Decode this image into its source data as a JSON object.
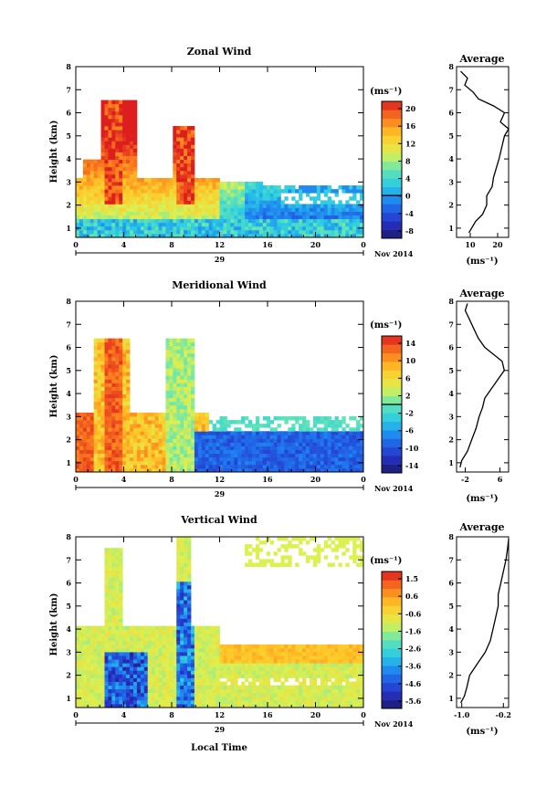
{
  "footer_label": "Local Time",
  "chart_data": [
    {
      "type": "heatmap",
      "title": "Zonal Wind",
      "xlabel": "",
      "ylabel": "Height (km)",
      "date_label": "29",
      "month_label": "Nov 2014",
      "x_ticks": [
        "0",
        "4",
        "8",
        "12",
        "16",
        "20",
        "0"
      ],
      "y_ticks": [
        "1",
        "2",
        "3",
        "4",
        "5",
        "6",
        "7",
        "8"
      ],
      "xlim": [
        0,
        24
      ],
      "ylim": [
        0.6,
        8.0
      ],
      "colorbar": {
        "unit": "(ms⁻¹)",
        "ticks": [
          "20",
          "16",
          "12",
          "8",
          "4",
          "0",
          "-4",
          "-8"
        ],
        "range": [
          -10,
          22
        ],
        "zero_line": 0
      },
      "profile": {
        "title": "Average",
        "xlabel": "(ms⁻¹)",
        "x_ticks": [
          "10",
          "20"
        ],
        "xlim": [
          5,
          24
        ],
        "heights": [
          0.8,
          1.0,
          1.3,
          1.6,
          2.0,
          2.4,
          2.8,
          3.2,
          3.6,
          4.0,
          4.5,
          5.0,
          5.3,
          5.6,
          6.0,
          6.3,
          6.6,
          6.9,
          7.2,
          7.5,
          7.8
        ],
        "values": [
          9.5,
          10.5,
          12.0,
          14.5,
          16.0,
          16.0,
          18.0,
          18.5,
          19.5,
          20.5,
          21.5,
          22.5,
          24.0,
          21.0,
          22.5,
          18.5,
          13.0,
          11.0,
          8.0,
          9.0,
          6.5
        ]
      }
    },
    {
      "type": "heatmap",
      "title": "Meridional Wind",
      "xlabel": "",
      "ylabel": "Height (km)",
      "date_label": "29",
      "month_label": "Nov 2014",
      "x_ticks": [
        "0",
        "4",
        "8",
        "12",
        "16",
        "20",
        "0"
      ],
      "y_ticks": [
        "1",
        "2",
        "3",
        "4",
        "5",
        "6",
        "7",
        "8"
      ],
      "xlim": [
        0,
        24
      ],
      "ylim": [
        0.6,
        8.0
      ],
      "colorbar": {
        "unit": "(ms⁻¹)",
        "ticks": [
          "14",
          "10",
          "6",
          "2",
          "-2",
          "-6",
          "-10",
          "-14"
        ],
        "range": [
          -16,
          16
        ],
        "zero_line": 0
      },
      "profile": {
        "title": "Average",
        "xlabel": "(ms⁻¹)",
        "x_ticks": [
          "-2",
          "6"
        ],
        "xlim": [
          -4,
          8
        ],
        "heights": [
          0.8,
          1.1,
          1.5,
          2.0,
          2.5,
          3.0,
          3.4,
          3.8,
          4.2,
          4.6,
          5.0,
          5.4,
          5.7,
          6.0,
          6.4,
          6.8,
          7.2,
          7.6,
          7.9
        ],
        "values": [
          -3.2,
          -2.8,
          -1.5,
          -0.5,
          0.5,
          1.2,
          2.0,
          2.5,
          4.0,
          5.5,
          7.0,
          6.5,
          4.5,
          2.5,
          1.0,
          0.0,
          -1.0,
          -2.0,
          -1.5
        ]
      }
    },
    {
      "type": "heatmap",
      "title": "Vertical Wind",
      "xlabel": "Local Time",
      "ylabel": "Height (km)",
      "date_label": "29",
      "month_label": "Nov 2014",
      "x_ticks": [
        "0",
        "4",
        "8",
        "12",
        "16",
        "20",
        "0"
      ],
      "y_ticks": [
        "1",
        "2",
        "3",
        "4",
        "5",
        "6",
        "7",
        "8"
      ],
      "xlim": [
        0,
        24
      ],
      "ylim": [
        0.6,
        8.0
      ],
      "colorbar": {
        "unit": "(ms⁻¹)",
        "ticks": [
          "1.5",
          "0.6",
          "-0.6",
          "-1.6",
          "-2.6",
          "-3.6",
          "-4.6",
          "-5.6"
        ],
        "range": [
          -6.2,
          2.2
        ],
        "zero_line": null
      },
      "profile": {
        "title": "Average",
        "xlabel": "(ms⁻¹)",
        "x_ticks": [
          "-1.0",
          "-0.2"
        ],
        "xlim": [
          -1.1,
          -0.1
        ],
        "heights": [
          0.8,
          1.1,
          1.5,
          2.0,
          2.5,
          3.0,
          3.5,
          4.0,
          4.5,
          5.0,
          5.5,
          6.0,
          6.5,
          7.0,
          7.5,
          7.9
        ],
        "values": [
          -1.02,
          -0.95,
          -0.9,
          -0.85,
          -0.7,
          -0.55,
          -0.45,
          -0.4,
          -0.35,
          -0.3,
          -0.3,
          -0.25,
          -0.2,
          -0.15,
          -0.12,
          -0.1
        ]
      }
    }
  ]
}
